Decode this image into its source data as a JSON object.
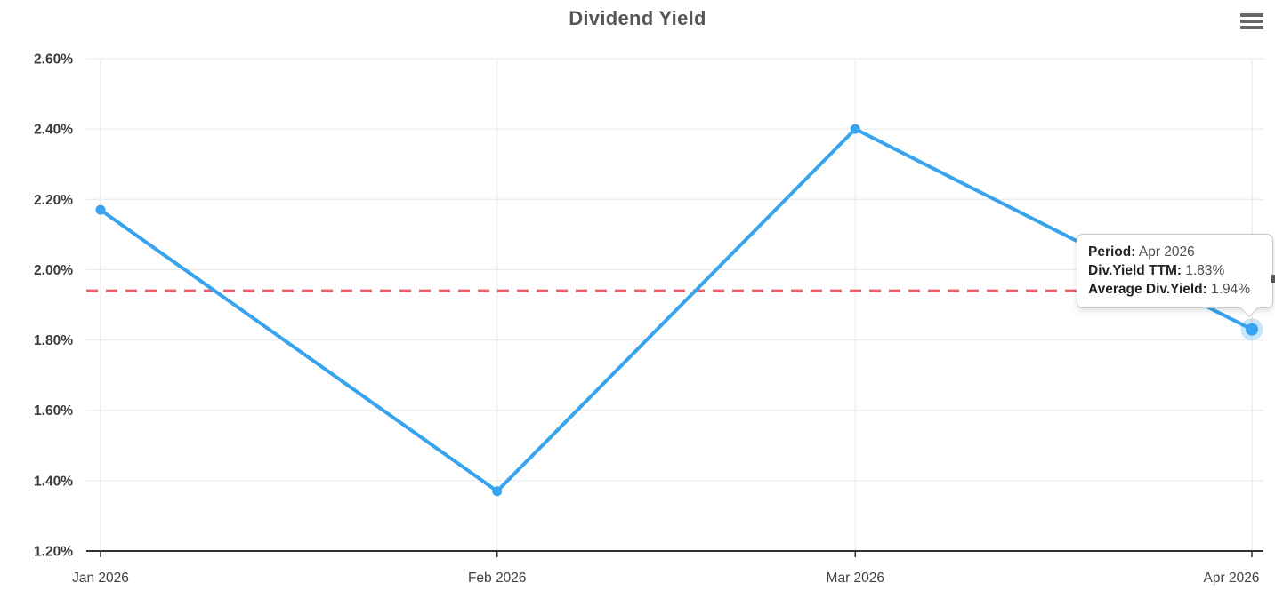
{
  "title": "Dividend Yield",
  "menu": {
    "icon": "hamburger-menu-icon"
  },
  "colors": {
    "series_blue": "#38A3EE",
    "series_halo": "rgba(56,163,238,0.28)",
    "average_red": "#ED5C6B",
    "gridline": "#E6E6E6",
    "axis_line": "#333333"
  },
  "chart_data": {
    "type": "line",
    "title": "Dividend Yield",
    "x": [
      "Jan 2026",
      "Feb 2026",
      "Mar 2026",
      "Apr 2026"
    ],
    "x_day_offsets": [
      0,
      31,
      59,
      90
    ],
    "series": [
      {
        "name": "Div.Yield TTM",
        "values": [
          2.17,
          1.37,
          2.4,
          1.83
        ]
      }
    ],
    "average_line": {
      "name": "Average Div.Yield",
      "value": 1.94,
      "style": "dashed"
    },
    "ylim": [
      1.2,
      2.6
    ],
    "y_ticks": [
      2.6,
      2.4,
      2.2,
      2.0,
      1.8,
      1.6,
      1.4,
      1.2
    ],
    "y_tick_labels": [
      "2.60%",
      "2.40%",
      "2.20%",
      "2.00%",
      "1.80%",
      "1.60%",
      "1.40%",
      "1.20%"
    ],
    "ytick_format": "percent",
    "grid": true,
    "legend": false,
    "hovered_point_index": 3
  },
  "tooltip": {
    "rows": [
      {
        "label": "Period:",
        "value": "Apr 2026"
      },
      {
        "label": "Div.Yield TTM:",
        "value": "1.83%"
      },
      {
        "label": "Average Div.Yield:",
        "value": "1.94%"
      }
    ]
  }
}
